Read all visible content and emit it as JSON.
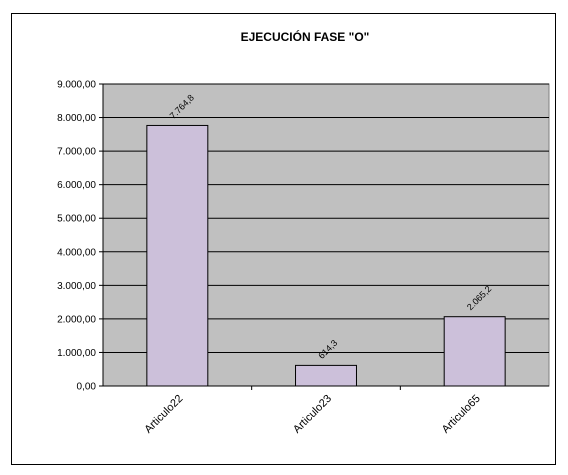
{
  "chart_data": {
    "type": "bar",
    "title": "EJECUCIÓN FASE \"O\"",
    "categories": [
      "Articulo22",
      "Articulo23",
      "Articulo65"
    ],
    "values": [
      7764.8,
      614.3,
      2065.2
    ],
    "data_labels": [
      "7.764,8",
      "614,3",
      "2.065,2"
    ],
    "ylim": [
      0,
      9000
    ],
    "y_ticks": [
      0,
      1000,
      2000,
      3000,
      4000,
      5000,
      6000,
      7000,
      8000,
      9000
    ],
    "y_tick_labels": [
      "0,00",
      "1.000,00",
      "2.000,00",
      "3.000,00",
      "4.000,00",
      "5.000,00",
      "6.000,00",
      "7.000,00",
      "8.000,00",
      "9.000,00"
    ],
    "xlabel": "",
    "ylabel": "",
    "grid": true,
    "legend": "none",
    "colors": {
      "bar_fill": "#ccc0da",
      "bar_stroke": "#000000",
      "plot_background": "#c0c0c0",
      "gridline": "#000000"
    }
  }
}
